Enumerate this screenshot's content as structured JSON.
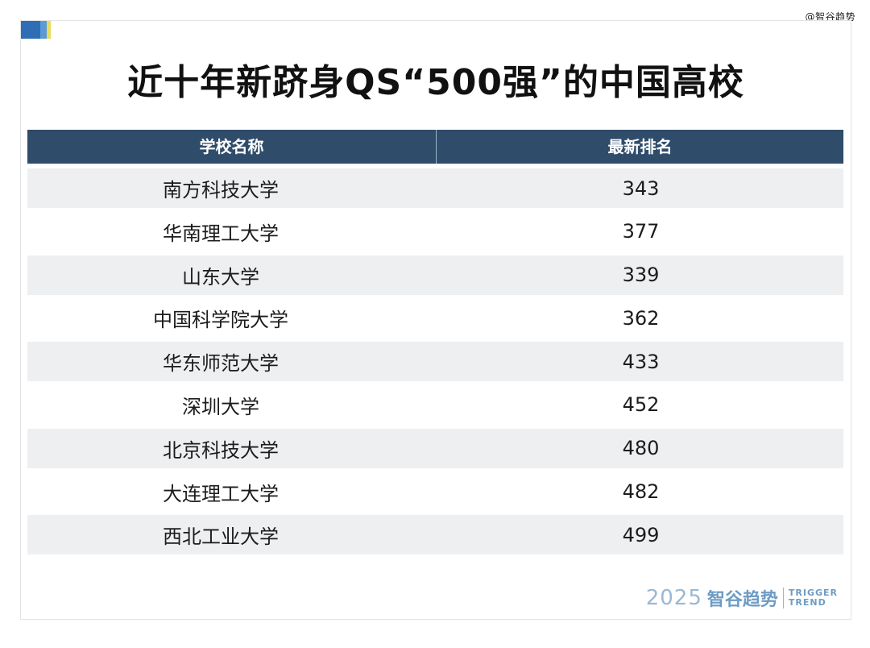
{
  "watermark": "@智谷趋势",
  "title": "近十年新跻身QS“500强”的中国高校",
  "table": {
    "headers": [
      "学校名称",
      "最新排名"
    ],
    "rows": [
      {
        "name": "南方科技大学",
        "rank": "343"
      },
      {
        "name": "华南理工大学",
        "rank": "377"
      },
      {
        "name": "山东大学",
        "rank": "339"
      },
      {
        "name": "中国科学院大学",
        "rank": "362"
      },
      {
        "name": "华东师范大学",
        "rank": "433"
      },
      {
        "name": "深圳大学",
        "rank": "452"
      },
      {
        "name": "北京科技大学",
        "rank": "480"
      },
      {
        "name": "大连理工大学",
        "rank": "482"
      },
      {
        "name": "西北工业大学",
        "rank": "499"
      }
    ]
  },
  "brand": {
    "year": "2025",
    "name": "智谷趋势",
    "en_line1": "TRIGGER",
    "en_line2": "TREND"
  },
  "colors": {
    "header_bg": "#2f4c6b",
    "row_shade": "#eeeff1",
    "brand_accent": "#6e9cc4"
  }
}
